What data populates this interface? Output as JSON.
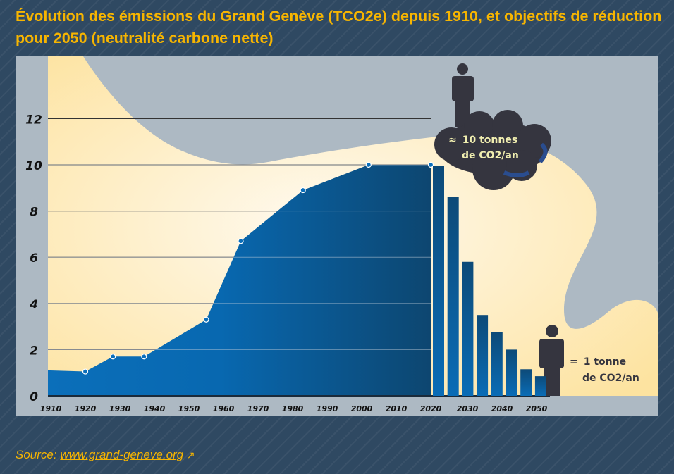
{
  "title": "Évolution des émissions du Grand Genève (TCO2e) depuis 1910, et objectifs de réduction pour 2050  (neutralité carbone nette)",
  "source": {
    "label": "Source: ",
    "link_text": "www.grand-geneve.org",
    "icon": "external-link-icon"
  },
  "colors": {
    "title": "#f7b500",
    "area": "#0a6bb5",
    "bars": "#0b5c9c",
    "panel": "#adb9c3",
    "glow": "#fde9b3",
    "figure": "#35353f"
  },
  "annotations": {
    "high": {
      "prefix": "≈",
      "line1": "10 tonnes",
      "line2": "de CO2/an"
    },
    "low": {
      "prefix": "=",
      "line1": "1 tonne",
      "line2": "de CO2/an"
    }
  },
  "chart_data": {
    "type": "area+bar",
    "title": "Évolution des émissions du Grand Genève (TCO2e) depuis 1910, et objectifs de réduction pour 2050  (neutralité carbone nette)",
    "xlabel": "",
    "ylabel": "",
    "xlim": [
      1910,
      2050
    ],
    "ylim": [
      0,
      12
    ],
    "x_ticks": [
      "1910",
      "1920",
      "1930",
      "1940",
      "1950",
      "1960",
      "1970",
      "1980",
      "1990",
      "2000",
      "2010",
      "2020",
      "2030",
      "2040",
      "2050"
    ],
    "y_ticks": [
      "0",
      "2",
      "4",
      "6",
      "8",
      "10",
      "12"
    ],
    "grid": true,
    "historical": {
      "x": [
        1910,
        1920,
        1928,
        1937,
        1955,
        1965,
        1983,
        2002,
        2020
      ],
      "y": [
        1.1,
        1.05,
        1.7,
        1.7,
        3.3,
        6.7,
        8.9,
        10,
        10
      ]
    },
    "targets": {
      "x": [
        2022,
        2026,
        2031,
        2035,
        2039,
        2043,
        2048,
        2052
      ],
      "y": [
        9.95,
        8.6,
        5.8,
        3.5,
        2.75,
        2.0,
        1.15,
        0.85
      ]
    }
  }
}
